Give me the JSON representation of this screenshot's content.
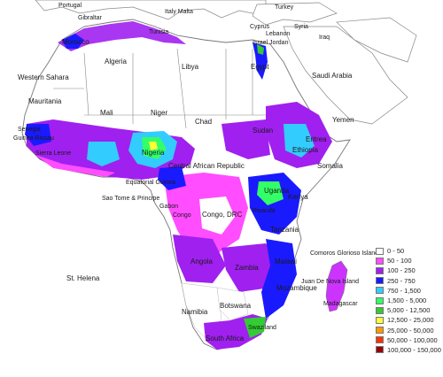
{
  "map": {
    "labels": {
      "portugal": "Portugal",
      "gibraltar": "Gibraltar",
      "italy_malta": "Italy Malta",
      "tunisia": "Tunisia",
      "turkey": "Turkey",
      "cyprus": "Cyprus",
      "syria": "Syria",
      "lebanon": "Lebanon",
      "iraq": "Iraq",
      "israel_jordan": "Israel Jordan",
      "morocco": "Morocco",
      "algeria": "Algeria",
      "libya": "Libya",
      "egypt": "Egypt",
      "saudi_arabia": "Saudi Arabia",
      "western_sahara": "Western Sahara",
      "mauritania": "Mauritania",
      "mali": "Mali",
      "niger": "Niger",
      "chad": "Chad",
      "sudan": "Sudan",
      "eritrea": "Eritrea",
      "yemen": "Yemen",
      "senegal": "Senegal",
      "guinea_bissau": "Guinea-Bissau",
      "sierra_leone": "Sierra Leone",
      "nigeria": "Nigeria",
      "car": "Central African Republic",
      "ethiopia": "Ethiopia",
      "somalia": "Somalia",
      "equatorial_guinea": "Equatorial Guinea",
      "sao_tome": "Sao Tome & Principe",
      "gabon": "Gabon",
      "congo": "Congo",
      "congo_drc": "Congo, DRC",
      "uganda": "Uganda",
      "kenya": "Kenya",
      "rwanda": "Rwanda",
      "tanzania": "Tanzania",
      "angola": "Angola",
      "zambia": "Zambia",
      "malawi": "Malawi",
      "mozambique": "Mozambique",
      "juan_de_nova": "Juan De Nova Island",
      "madagascar": "Madagascar",
      "namibia": "Namibia",
      "botswana": "Botswana",
      "swaziland": "Swaziland",
      "south_africa": "South Africa",
      "st_helena": "St. Helena",
      "comoros": "Comoros Glorioso Islands"
    }
  },
  "legend": {
    "items": [
      {
        "label": "0 - 50",
        "color": "#ffffff"
      },
      {
        "label": "50 - 100",
        "color": "#ff4dff"
      },
      {
        "label": "100 - 250",
        "color": "#a020f0"
      },
      {
        "label": "250 - 750",
        "color": "#1a1aff"
      },
      {
        "label": "750 - 1,500",
        "color": "#33ccff"
      },
      {
        "label": "1,500 - 5,000",
        "color": "#33ff66"
      },
      {
        "label": "5,000 - 12,500",
        "color": "#33cc33"
      },
      {
        "label": "12,500 - 25,000",
        "color": "#ffff33"
      },
      {
        "label": "25,000 - 50,000",
        "color": "#ff9900"
      },
      {
        "label": "50,000 - 100,000",
        "color": "#ff3300"
      },
      {
        "label": "100,000 - 150,000",
        "color": "#990000"
      }
    ]
  }
}
